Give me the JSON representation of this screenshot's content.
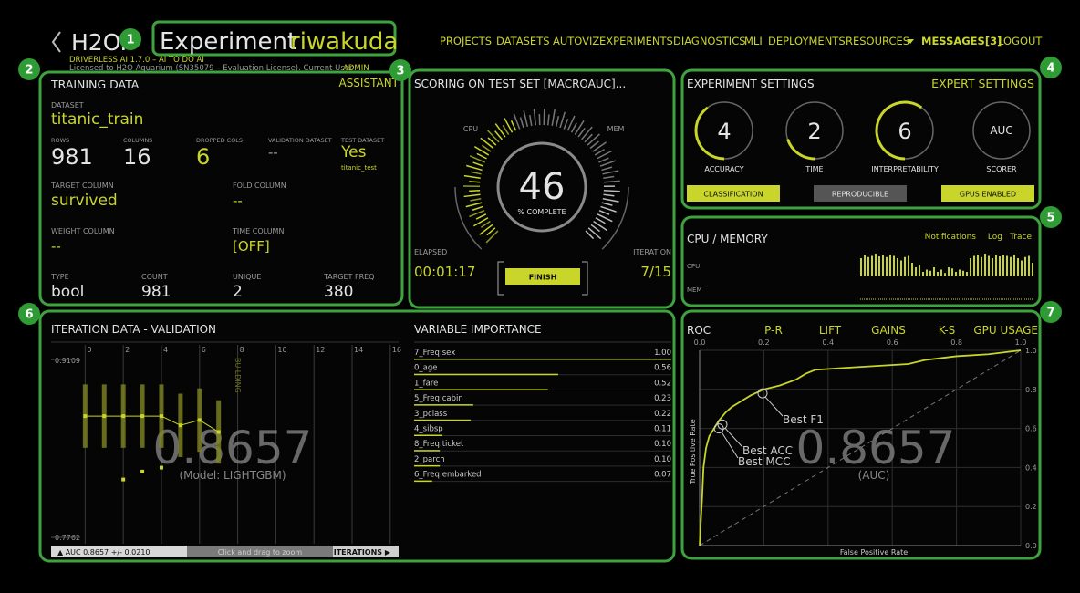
{
  "header": {
    "logo": "H2O.",
    "title": "Experiment",
    "experiment_name": "riwakuda",
    "version": "DRIVERLESS AI 1.7.0 – AI TO DO AI",
    "license": "Licensed to H2O Aquarium (SN35079 – Evaluation License). Current User –",
    "user": "ADMIN",
    "nav": [
      "PROJECTS",
      "DATASETS",
      "AUTOVIZ",
      "EXPERIMENTS",
      "DIAGNOSTICS",
      "MLI",
      "DEPLOYMENTS",
      "RESOURCES",
      "MESSAGES[3]",
      "LOGOUT"
    ]
  },
  "annotations": [
    1,
    2,
    3,
    4,
    5,
    6,
    7
  ],
  "training_data": {
    "title": "TRAINING DATA",
    "assistant": "ASSISTANT",
    "dataset_label": "DATASET",
    "dataset": "titanic_train",
    "stats": [
      {
        "label": "ROWS",
        "value": 981
      },
      {
        "label": "COLUMNS",
        "value": 16
      },
      {
        "label": "DROPPED COLS",
        "value": 6
      },
      {
        "label": "VALIDATION DATASET",
        "value": "--"
      },
      {
        "label": "TEST DATASET",
        "value": "Yes",
        "sub": "titanic_test"
      }
    ],
    "columns": [
      {
        "label": "TARGET COLUMN",
        "value": "survived"
      },
      {
        "label": "FOLD COLUMN",
        "value": "--"
      },
      {
        "label": "WEIGHT COLUMN",
        "value": "--"
      },
      {
        "label": "TIME COLUMN",
        "value": "[OFF]"
      }
    ],
    "target": [
      {
        "label": "TYPE",
        "value": "bool"
      },
      {
        "label": "COUNT",
        "value": 981
      },
      {
        "label": "UNIQUE",
        "value": 2
      },
      {
        "label": "TARGET FREQ",
        "value": 380
      }
    ]
  },
  "scoring": {
    "title": "SCORING ON TEST SET [MACROAUC]...",
    "cpu_label": "CPU",
    "mem_label": "MEM",
    "percent_complete": 46,
    "complete_label": "% COMPLETE",
    "elapsed_label": "ELAPSED",
    "elapsed": "00:01:17",
    "iteration_label": "ITERATION",
    "iteration": "7/15",
    "finish": "FINISH"
  },
  "settings": {
    "title": "EXPERIMENT SETTINGS",
    "expert": "EXPERT SETTINGS",
    "dials": [
      {
        "label": "ACCURACY",
        "value": 4
      },
      {
        "label": "TIME",
        "value": 2
      },
      {
        "label": "INTERPRETABILITY",
        "value": 6
      },
      {
        "label": "SCORER",
        "value": "AUC"
      }
    ],
    "buttons": [
      "CLASSIFICATION",
      "REPRODUCIBLE",
      "GPUS ENABLED"
    ]
  },
  "system": {
    "title": "CPU / MEMORY",
    "links": [
      "Notifications",
      "Log",
      "Trace"
    ],
    "cpu_label": "CPU",
    "mem_label": "MEM",
    "cpu_usage": [
      80,
      95,
      85,
      90,
      100,
      88,
      92,
      85,
      95,
      90,
      80,
      70,
      85,
      90,
      60,
      40,
      50,
      20,
      30,
      25,
      40,
      20,
      30,
      15,
      40,
      35,
      20,
      30,
      25,
      20,
      80,
      90,
      95,
      85,
      100,
      90,
      80,
      95,
      88,
      92,
      90,
      85,
      95,
      80,
      70,
      85,
      90,
      60
    ]
  },
  "iteration_data": {
    "title": "ITERATION DATA - VALIDATION",
    "xlim": [
      -1.5,
      16.2
    ],
    "xticks": [
      0,
      2,
      4,
      6,
      8,
      10,
      12,
      14,
      16
    ],
    "ylim": [
      0.7762,
      0.9109
    ],
    "iterations": [
      0,
      1,
      2,
      3,
      4,
      5,
      6,
      7
    ],
    "scores": [
      0.868,
      0.868,
      0.868,
      0.868,
      0.868,
      0.861,
      0.865,
      0.856
    ],
    "errors": [
      0.024,
      0.024,
      0.024,
      0.024,
      0.024,
      0.024,
      0.024,
      0.024
    ],
    "other_iterations": [
      2,
      3,
      4
    ],
    "other_scores": [
      0.82,
      0.826,
      0.829
    ],
    "building": "BUILDING",
    "score": "0.8657",
    "model": "(Model: LIGHTGBM)",
    "footer": "▲ AUC 0.8657 +/- 0.0210",
    "zoom_hint": "Click and drag to zoom",
    "iterations_button": "ITERATIONS ▶"
  },
  "variable_importance": {
    "title": "VARIABLE IMPORTANCE",
    "features": [
      "7_Freq:sex",
      "0_age",
      "1_fare",
      "5_Freq:cabin",
      "3_pclass",
      "4_sibsp",
      "8_Freq:ticket",
      "2_parch",
      "6_Freq:embarked"
    ],
    "values": [
      1,
      0.56,
      0.52,
      0.23,
      0.22,
      0.11,
      0.1,
      0.1,
      0.07
    ],
    "value_labels": [
      "1.00",
      "0.56",
      "0.52",
      "0.23",
      "0.22",
      "0.11",
      "0.10",
      "0.10",
      "0.07"
    ]
  },
  "roc": {
    "tabs": [
      "ROC",
      "P-R",
      "LIFT",
      "GAINS",
      "K-S",
      "GPU USAGE"
    ],
    "xlim": [
      0,
      1
    ],
    "ylim": [
      0,
      1
    ],
    "xticks": [
      {
        "value": 0,
        "label": "0.0"
      },
      0.2,
      0.4,
      0.6,
      0.8,
      {
        "value": 1,
        "label": "1.0"
      }
    ],
    "yticks": [
      {
        "value": 0,
        "label": "0.0"
      },
      0.2,
      0.4,
      0.6,
      0.8,
      {
        "value": 1,
        "label": "1.0"
      }
    ],
    "x_label": "False Positive Rate",
    "y_label": "True Positive Rate",
    "fpr": [
      0,
      0.003,
      0.008,
      0.012,
      0.02,
      0.03,
      0.045,
      0.06,
      0.08,
      0.1,
      0.13,
      0.16,
      0.2,
      0.25,
      0.3,
      0.33,
      0.36,
      0.45,
      0.55,
      0.65,
      0.7,
      0.75,
      0.8,
      0.9,
      0.95,
      1
    ],
    "tpr": [
      0,
      0.1,
      0.25,
      0.4,
      0.5,
      0.56,
      0.6,
      0.64,
      0.68,
      0.71,
      0.74,
      0.77,
      0.8,
      0.82,
      0.85,
      0.88,
      0.9,
      0.91,
      0.92,
      0.93,
      0.95,
      0.96,
      0.97,
      0.98,
      0.99,
      1
    ],
    "markers": [
      {
        "label": "Best F1",
        "fpr": 0.196,
        "tpr": 0.78
      },
      {
        "label": "Best ACC",
        "fpr": 0.071,
        "tpr": 0.62
      },
      {
        "label": "Best MCC",
        "fpr": 0.06,
        "tpr": 0.6
      }
    ],
    "auc": "0.8657",
    "auc_label": "(AUC)"
  }
}
